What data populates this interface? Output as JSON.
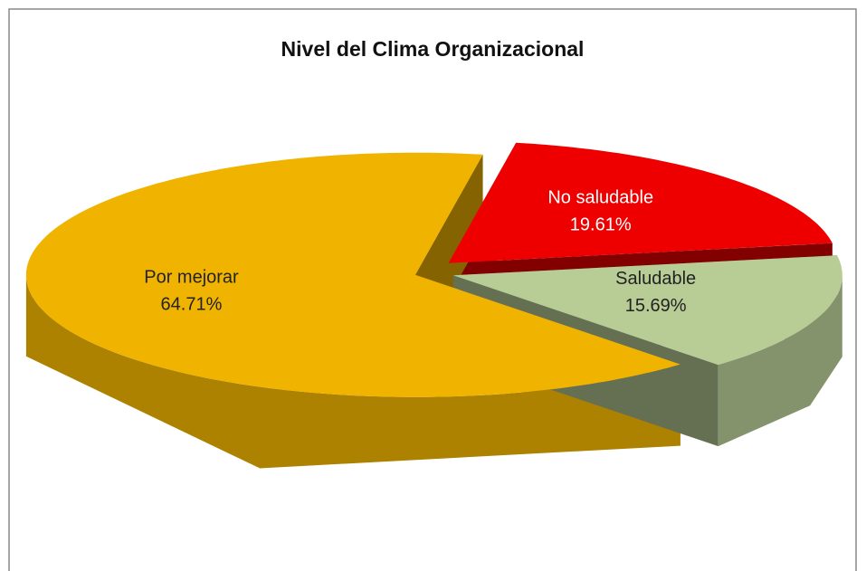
{
  "chart_data": {
    "type": "pie",
    "title": "Nivel del Clima Organizacional",
    "categories": [
      "Por mejorar",
      "No saludable",
      "Saludable"
    ],
    "values": [
      64.71,
      19.61,
      15.69
    ],
    "value_labels": [
      "64.71%",
      "19.61%",
      "15.69%"
    ],
    "colors": [
      "#f0b400",
      "#ee0000",
      "#b8cc96"
    ]
  }
}
